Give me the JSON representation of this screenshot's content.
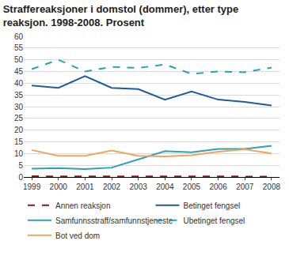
{
  "chart_data": {
    "type": "line",
    "title": "Straffereaksjoner i domstol (dommer), etter type reaksjon. 1998-2008. Prosent",
    "categories": [
      "1999",
      "2000",
      "2001",
      "2002",
      "2003",
      "2004",
      "2005",
      "2006",
      "2007",
      "2008"
    ],
    "series": [
      {
        "name": "Annen reaksjon",
        "color": "#8b1a1a",
        "line_style": "dash",
        "values": [
          0.3,
          0.3,
          0.3,
          0.3,
          0.3,
          0.3,
          0.2,
          0.2,
          0.2,
          0.2
        ]
      },
      {
        "name": "Betinget fengsel",
        "color": "#1f5b9e",
        "line_style": "solid",
        "values": [
          39,
          38,
          43,
          38,
          37.5,
          33,
          36.5,
          33,
          32,
          30.5
        ]
      },
      {
        "name": "Samfunnsstraff/samfunnstjeneste",
        "color": "#2aa2b8",
        "line_style": "solid",
        "values": [
          3.5,
          3.8,
          3.4,
          4,
          7.5,
          11,
          10.5,
          12,
          12,
          13.3
        ]
      },
      {
        "name": "Ubetinget fengsel",
        "color": "#2aa2b8",
        "line_style": "dash",
        "values": [
          46,
          50,
          45,
          47,
          46.5,
          48,
          44,
          45,
          44.7,
          46.7
        ]
      },
      {
        "name": "Bot ved dom",
        "color": "#f0a55c",
        "line_style": "solid",
        "values": [
          11.5,
          9,
          9,
          11.3,
          9,
          8.8,
          9.3,
          10.8,
          11.8,
          10
        ]
      }
    ],
    "ylim": [
      0,
      60
    ],
    "yticks": [
      0,
      5,
      10,
      15,
      20,
      25,
      30,
      35,
      40,
      45,
      50,
      55,
      60
    ],
    "grid": true,
    "legend": "bottom"
  }
}
